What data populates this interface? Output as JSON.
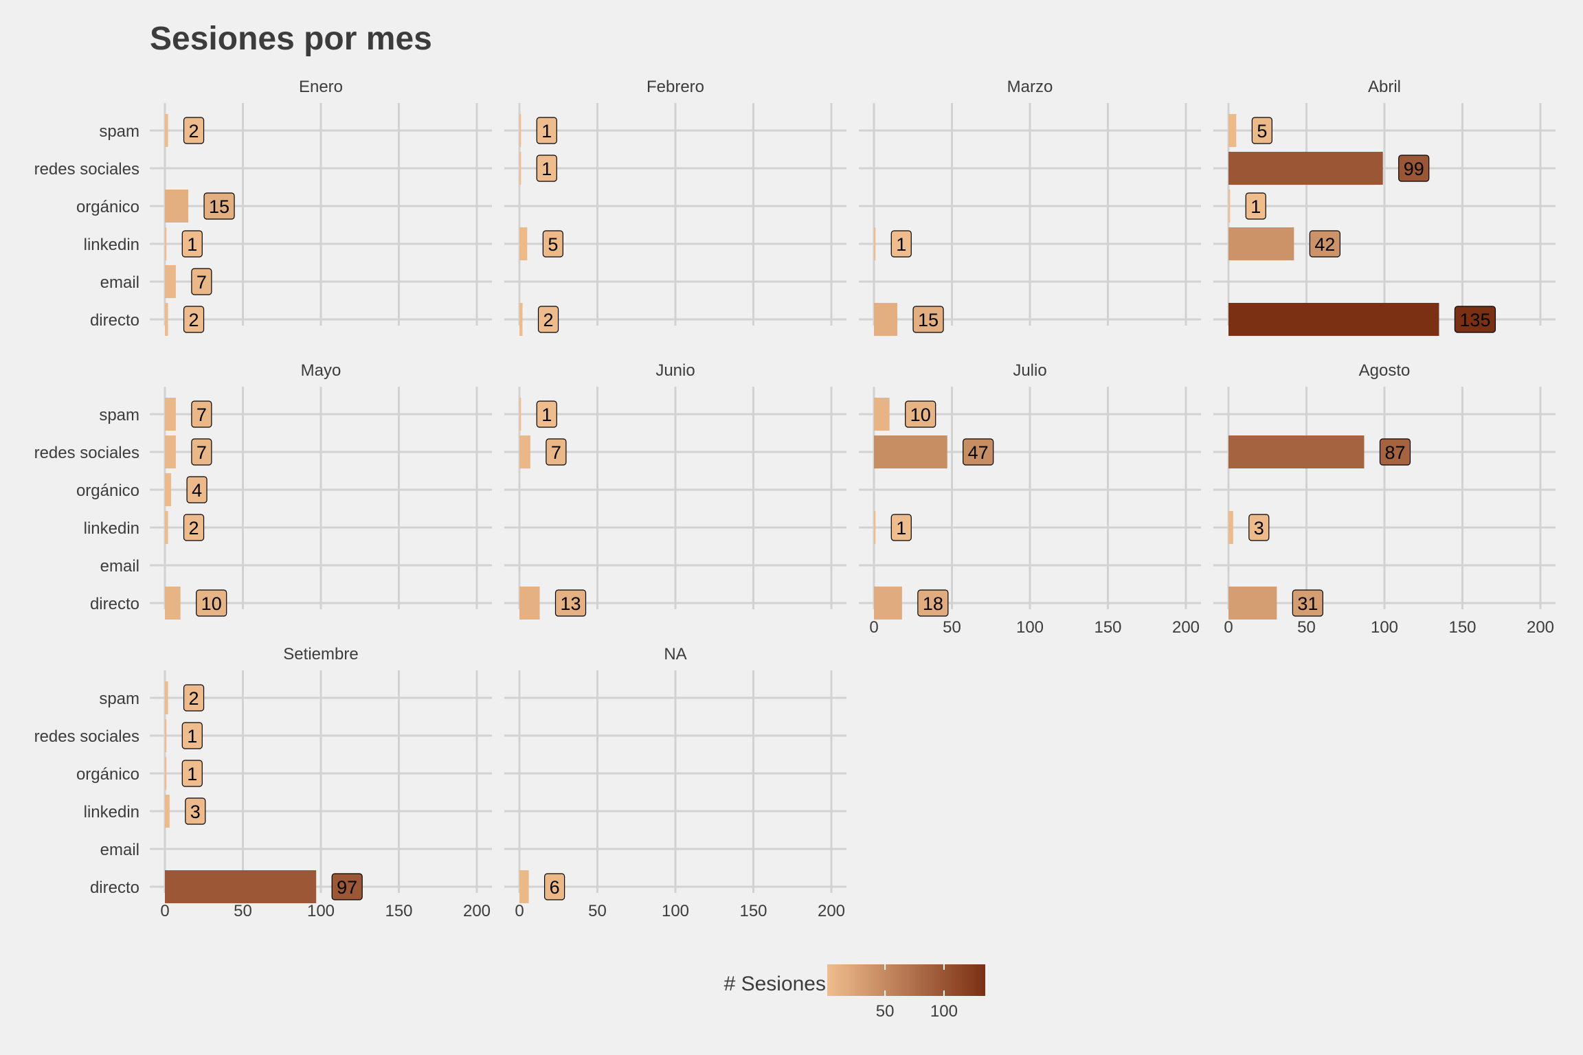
{
  "chart_data": {
    "type": "bar",
    "orientation": "horizontal",
    "title": "Sesiones por mes",
    "categories": [
      "spam",
      "redes sociales",
      "orgánico",
      "linkedin",
      "email",
      "directo"
    ],
    "xlim": [
      0,
      200
    ],
    "x_ticks": [
      0,
      50,
      100,
      150,
      200
    ],
    "grid": true,
    "panels": [
      {
        "name": "Enero",
        "values": {
          "spam": 2,
          "orgánico": 15,
          "linkedin": 1,
          "email": 7,
          "directo": 2
        }
      },
      {
        "name": "Febrero",
        "values": {
          "spam": 1,
          "redes sociales": 1,
          "linkedin": 5,
          "directo": 2
        }
      },
      {
        "name": "Marzo",
        "values": {
          "linkedin": 1,
          "directo": 15
        }
      },
      {
        "name": "Abril",
        "values": {
          "spam": 5,
          "redes sociales": 99,
          "orgánico": 1,
          "linkedin": 42,
          "directo": 135
        }
      },
      {
        "name": "Mayo",
        "values": {
          "spam": 7,
          "redes sociales": 7,
          "orgánico": 4,
          "linkedin": 2,
          "directo": 10
        }
      },
      {
        "name": "Junio",
        "values": {
          "spam": 1,
          "redes sociales": 7,
          "directo": 13
        }
      },
      {
        "name": "Julio",
        "values": {
          "spam": 10,
          "redes sociales": 47,
          "linkedin": 1,
          "directo": 18
        }
      },
      {
        "name": "Agosto",
        "values": {
          "redes sociales": 87,
          "linkedin": 3,
          "directo": 31
        }
      },
      {
        "name": "Setiembre",
        "values": {
          "spam": 2,
          "redes sociales": 1,
          "orgánico": 1,
          "linkedin": 3,
          "directo": 97
        }
      },
      {
        "name": "NA",
        "values": {
          "directo": 6
        }
      }
    ],
    "legend": {
      "title": "# Sesiones",
      "position": "bottom",
      "ticks": [
        50,
        100
      ],
      "range": [
        1,
        135
      ],
      "color_low": "#efbd8d",
      "color_high": "#7b3014"
    }
  }
}
